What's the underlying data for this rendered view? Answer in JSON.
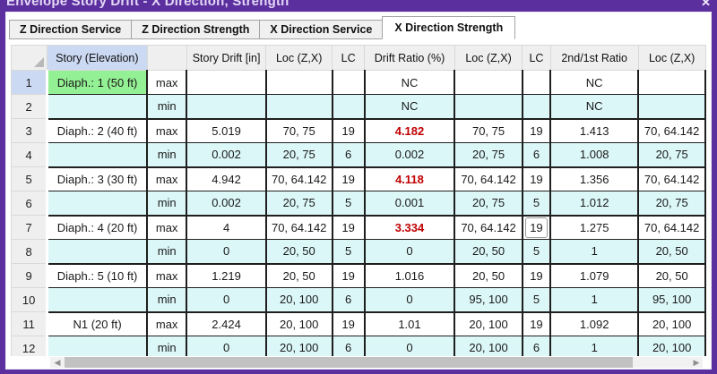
{
  "window": {
    "title": "Envelope Story Drift - X Direction, Strength",
    "close_label": "✕"
  },
  "tabs": [
    {
      "label": "Z Direction Service",
      "active": false
    },
    {
      "label": "Z Direction Strength",
      "active": false
    },
    {
      "label": "X Direction Service",
      "active": false
    },
    {
      "label": "X Direction Strength",
      "active": true
    }
  ],
  "table": {
    "columns": [
      "Story (Elevation)",
      "",
      "Story Drift [in]",
      "Loc (Z,X)",
      "LC",
      "Drift Ratio (%)",
      "Loc (Z,X)",
      "LC",
      "2nd/1st Ratio",
      "Loc (Z,X)"
    ],
    "rows": [
      {
        "num": "1",
        "story": "Diaph.: 1 (50 ft)",
        "kind": "max",
        "drift": "",
        "loc1": "",
        "lc1": "",
        "drift_ratio": "NC",
        "loc2": "",
        "lc2": "",
        "ratio2": "NC",
        "loc3": "",
        "story_green": true,
        "num_hl": true,
        "ratio_red": false,
        "lc2_focus": false
      },
      {
        "num": "2",
        "story": "",
        "kind": "min",
        "drift": "",
        "loc1": "",
        "lc1": "",
        "drift_ratio": "NC",
        "loc2": "",
        "lc2": "",
        "ratio2": "NC",
        "loc3": "",
        "story_green": false,
        "num_hl": false,
        "ratio_red": false,
        "lc2_focus": false
      },
      {
        "num": "3",
        "story": "Diaph.: 2 (40 ft)",
        "kind": "max",
        "drift": "5.019",
        "loc1": "70, 75",
        "lc1": "19",
        "drift_ratio": "4.182",
        "loc2": "70, 75",
        "lc2": "19",
        "ratio2": "1.413",
        "loc3": "70, 64.142",
        "story_green": false,
        "num_hl": false,
        "ratio_red": true,
        "lc2_focus": false
      },
      {
        "num": "4",
        "story": "",
        "kind": "min",
        "drift": "0.002",
        "loc1": "20, 75",
        "lc1": "6",
        "drift_ratio": "0.002",
        "loc2": "20, 75",
        "lc2": "6",
        "ratio2": "1.008",
        "loc3": "20, 75",
        "story_green": false,
        "num_hl": false,
        "ratio_red": false,
        "lc2_focus": false
      },
      {
        "num": "5",
        "story": "Diaph.: 3 (30 ft)",
        "kind": "max",
        "drift": "4.942",
        "loc1": "70, 64.142",
        "lc1": "19",
        "drift_ratio": "4.118",
        "loc2": "70, 64.142",
        "lc2": "19",
        "ratio2": "1.356",
        "loc3": "70, 64.142",
        "story_green": false,
        "num_hl": false,
        "ratio_red": true,
        "lc2_focus": false
      },
      {
        "num": "6",
        "story": "",
        "kind": "min",
        "drift": "0.002",
        "loc1": "20, 75",
        "lc1": "5",
        "drift_ratio": "0.001",
        "loc2": "20, 75",
        "lc2": "5",
        "ratio2": "1.012",
        "loc3": "20, 75",
        "story_green": false,
        "num_hl": false,
        "ratio_red": false,
        "lc2_focus": false
      },
      {
        "num": "7",
        "story": "Diaph.: 4 (20 ft)",
        "kind": "max",
        "drift": "4",
        "loc1": "70, 64.142",
        "lc1": "19",
        "drift_ratio": "3.334",
        "loc2": "70, 64.142",
        "lc2": "19",
        "ratio2": "1.275",
        "loc3": "70, 64.142",
        "story_green": false,
        "num_hl": false,
        "ratio_red": true,
        "lc2_focus": true
      },
      {
        "num": "8",
        "story": "",
        "kind": "min",
        "drift": "0",
        "loc1": "20, 50",
        "lc1": "5",
        "drift_ratio": "0",
        "loc2": "20, 50",
        "lc2": "5",
        "ratio2": "1",
        "loc3": "20, 50",
        "story_green": false,
        "num_hl": false,
        "ratio_red": false,
        "lc2_focus": false
      },
      {
        "num": "9",
        "story": "Diaph.: 5 (10 ft)",
        "kind": "max",
        "drift": "1.219",
        "loc1": "20, 50",
        "lc1": "19",
        "drift_ratio": "1.016",
        "loc2": "20, 50",
        "lc2": "19",
        "ratio2": "1.079",
        "loc3": "20, 50",
        "story_green": false,
        "num_hl": false,
        "ratio_red": false,
        "lc2_focus": false
      },
      {
        "num": "10",
        "story": "",
        "kind": "min",
        "drift": "0",
        "loc1": "20, 100",
        "lc1": "6",
        "drift_ratio": "0",
        "loc2": "95, 100",
        "lc2": "5",
        "ratio2": "1",
        "loc3": "95, 100",
        "story_green": false,
        "num_hl": false,
        "ratio_red": false,
        "lc2_focus": false
      },
      {
        "num": "11",
        "story": "N1 (20 ft)",
        "kind": "max",
        "drift": "2.424",
        "loc1": "20, 100",
        "lc1": "19",
        "drift_ratio": "1.01",
        "loc2": "20, 100",
        "lc2": "19",
        "ratio2": "1.092",
        "loc3": "20, 100",
        "story_green": false,
        "num_hl": false,
        "ratio_red": false,
        "lc2_focus": false
      },
      {
        "num": "12",
        "story": "",
        "kind": "min",
        "drift": "0",
        "loc1": "20, 100",
        "lc1": "6",
        "drift_ratio": "0",
        "loc2": "20, 100",
        "lc2": "6",
        "ratio2": "1",
        "loc3": "20, 100",
        "story_green": false,
        "num_hl": false,
        "ratio_red": false,
        "lc2_focus": false
      }
    ]
  },
  "colors": {
    "accent_purple": "#5c2f9e",
    "selected_cell_green": "#94f094",
    "min_row_cyan": "#dcf7f8",
    "over_limit_red": "#c00000",
    "header_highlight": "#ccd9f2"
  }
}
